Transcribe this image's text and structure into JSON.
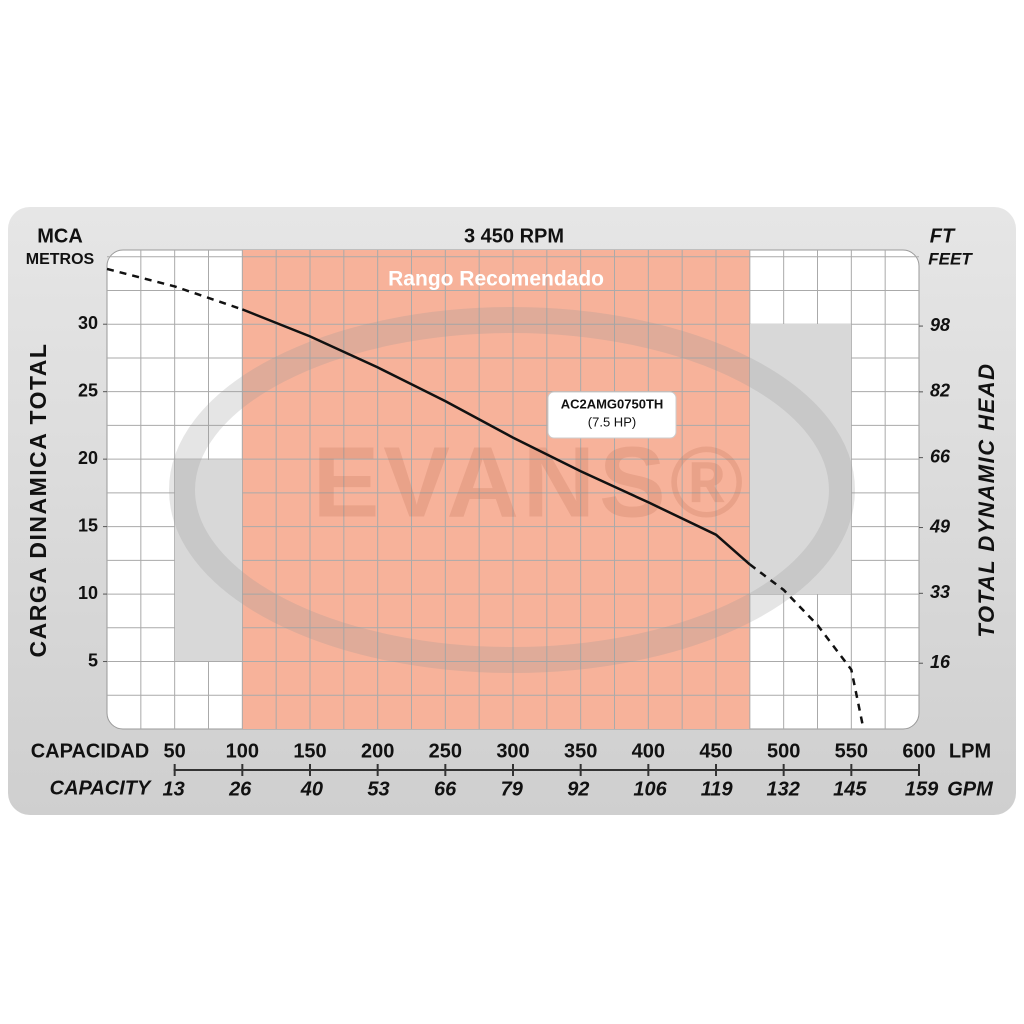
{
  "chart_data": {
    "type": "line",
    "title": "3 450 RPM",
    "y_unit": "MCA",
    "y_unit_sub": "METROS",
    "y_label": "CARGA DINAMICA TOTAL",
    "y2_unit": "FT",
    "y2_unit_sub": "FEET",
    "y2_label": "TOTAL DYNAMIC HEAD",
    "x_label": "CAPACIDAD",
    "x_unit": "LPM",
    "x2_label": "CAPACITY",
    "x2_unit": "GPM",
    "watermark": "EVANS®",
    "recommended_range": {
      "label": "Rango Recomendado",
      "xlim": [
        100,
        475
      ],
      "color": "#f7b29a"
    },
    "annotation": {
      "title": "AC2AMG0750TH",
      "subtitle": "(7.5 HP)"
    },
    "xlim": [
      0,
      600
    ],
    "xticks": [
      50,
      100,
      150,
      200,
      250,
      300,
      350,
      400,
      450,
      500,
      550,
      600
    ],
    "x2lim": [
      0,
      158.5
    ],
    "x2ticks": [
      13,
      26,
      40,
      53,
      66,
      79,
      92,
      106,
      119,
      132,
      145,
      159
    ],
    "ylim": [
      0,
      35.5
    ],
    "yticks": [
      5,
      10,
      15,
      20,
      25,
      30
    ],
    "y2lim": [
      0,
      116.5
    ],
    "y2ticks": [
      16,
      33,
      49,
      66,
      82,
      98
    ],
    "grid": {
      "x_step": 25,
      "y_step": 2.5
    },
    "series": [
      {
        "name": "AC2AMG0750TH",
        "color": "#111111",
        "x": [
          0,
          50,
          100,
          150,
          200,
          250,
          300,
          350,
          400,
          450,
          475,
          500,
          525,
          550,
          559
        ],
        "values": [
          34.1,
          32.8,
          31.1,
          29.1,
          26.8,
          24.3,
          21.6,
          19.1,
          16.8,
          14.4,
          12.2,
          10.3,
          7.7,
          4.4,
          0
        ]
      }
    ]
  }
}
